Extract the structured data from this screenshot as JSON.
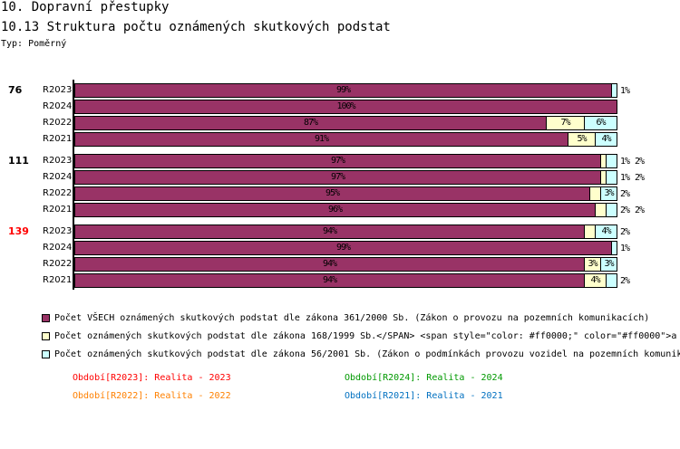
{
  "header": {
    "title": "10. Dopravní přestupky",
    "subtitle": "10.13 Struktura počtu oznámených skutkových podstat",
    "type_label": "Typ: Poměrný"
  },
  "chart_data": {
    "type": "bar",
    "orientation": "horizontal",
    "stacked": true,
    "normalized": true,
    "xlim": [
      0,
      100
    ],
    "series_colors": [
      "#993366",
      "#ffffcc",
      "#ccffff"
    ],
    "groups": [
      {
        "label": "76",
        "color": "#000000",
        "rows": [
          {
            "label": "R2023",
            "values": [
              99,
              0,
              1
            ]
          },
          {
            "label": "R2024",
            "values": [
              100,
              0,
              0
            ]
          },
          {
            "label": "R2022",
            "values": [
              87,
              7,
              6
            ]
          },
          {
            "label": "R2021",
            "values": [
              91,
              5,
              4
            ]
          }
        ]
      },
      {
        "label": "111",
        "color": "#000000",
        "rows": [
          {
            "label": "R2023",
            "values": [
              97,
              1,
              2
            ]
          },
          {
            "label": "R2024",
            "values": [
              97,
              1,
              2
            ]
          },
          {
            "label": "R2022",
            "values": [
              95,
              2,
              3
            ]
          },
          {
            "label": "R2021",
            "values": [
              96,
              2,
              2
            ]
          }
        ]
      },
      {
        "label": "139",
        "color": "#ff0000",
        "rows": [
          {
            "label": "R2023",
            "values": [
              94,
              2,
              4
            ]
          },
          {
            "label": "R2024",
            "values": [
              99,
              0,
              1
            ]
          },
          {
            "label": "R2022",
            "values": [
              94,
              3,
              3
            ]
          },
          {
            "label": "R2021",
            "values": [
              94,
              4,
              2
            ]
          }
        ]
      }
    ],
    "legend": [
      {
        "name": "Počet VŠECH oznámených skutkových podstat dle zákona 361/2000 Sb. (Zákon o provozu na pozemních komunikacích)",
        "color": "#993366"
      },
      {
        "name": "Počet oznámených skutkových podstat dle zákona 168/1999 Sb.</SPAN> <span style=\"color: #ff0000;\" color=\"#ff0000\">a",
        "color": "#ffffcc"
      },
      {
        "name": "Počet oznámených skutkových podstat dle zákona 56/2001 Sb. (Zákon o podmínkách provozu vozidel na pozemních komunik",
        "color": "#ccffff"
      }
    ],
    "periods": [
      {
        "text": "Období[R2023]: Realita - 2023",
        "color": "#ff0000"
      },
      {
        "text": "Období[R2024]: Realita - 2024",
        "color": "#009900"
      },
      {
        "text": "Období[R2022]: Realita - 2022",
        "color": "#ff8000"
      },
      {
        "text": "Období[R2021]: Realita - 2021",
        "color": "#0070c0"
      }
    ]
  }
}
